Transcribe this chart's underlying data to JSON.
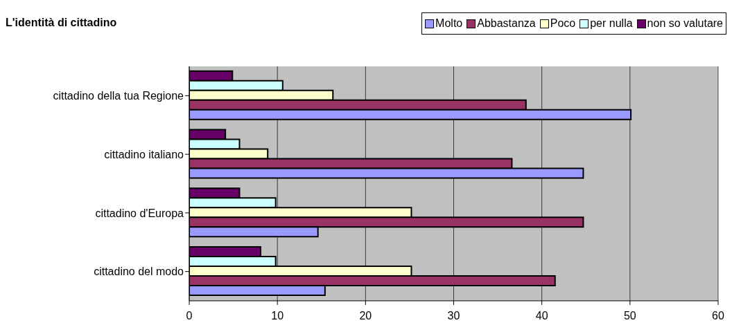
{
  "chart_data": {
    "type": "bar",
    "orientation": "horizontal",
    "title": "L'identità di cittadino",
    "categories": [
      "cittadino della tua Regione",
      "cittadino italiano",
      "cittadino d'Europa",
      "cittadino del modo"
    ],
    "series": [
      {
        "name": "Molto",
        "color": "#9999ff",
        "values": [
          50.1,
          44.7,
          14.6,
          15.4
        ]
      },
      {
        "name": "Abbastanza",
        "color": "#993366",
        "values": [
          38.2,
          36.6,
          44.7,
          41.5
        ]
      },
      {
        "name": "Poco",
        "color": "#ffffcc",
        "values": [
          16.3,
          8.9,
          25.2,
          25.2
        ]
      },
      {
        "name": "per nulla",
        "color": "#ccffff",
        "values": [
          10.6,
          5.7,
          9.8,
          9.8
        ]
      },
      {
        "name": "non so valutare",
        "color": "#660066",
        "values": [
          4.9,
          4.1,
          5.7,
          8.1
        ]
      }
    ],
    "xlim": [
      0,
      60
    ],
    "xticks": [
      0,
      10,
      20,
      30,
      40,
      50,
      60
    ],
    "grid": "x",
    "legend": "top right"
  }
}
